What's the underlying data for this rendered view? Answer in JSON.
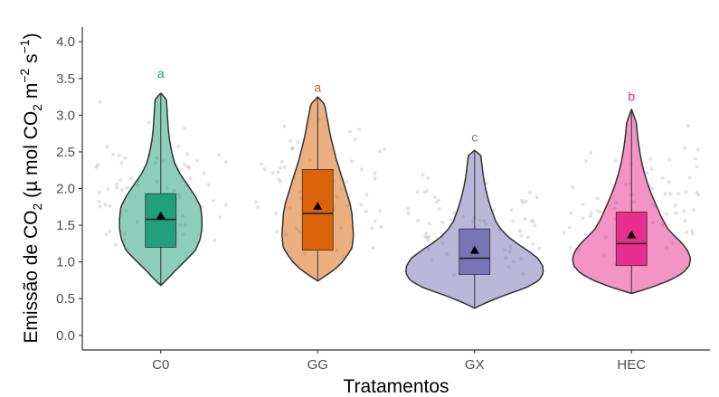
{
  "chart_data": {
    "type": "violin",
    "xlabel": "Tratamentos",
    "ylabel_parts": {
      "t1": "Emissão de CO",
      "s1": "2",
      "t2": " (µ mol CO",
      "s2": "2",
      "t3": " m",
      "s3": "−2",
      "t4": " s",
      "s4": "−1",
      "t5": ")"
    },
    "ylim": [
      -0.2,
      4.2
    ],
    "yticks": [
      "0.0",
      "0.5",
      "1.0",
      "1.5",
      "2.0",
      "2.5",
      "3.0",
      "3.5",
      "4.0"
    ],
    "categories": [
      "C0",
      "GG",
      "GX",
      "HEC"
    ],
    "groups": [
      {
        "category": "C0",
        "fill": "#1b9e77",
        "letter": "a",
        "min": 0.68,
        "q1": 1.2,
        "median": 1.58,
        "q3": 1.93,
        "max": 3.3,
        "mean": 1.63,
        "letter_y": 3.57,
        "density": [
          [
            0.68,
            0.0
          ],
          [
            0.75,
            0.08
          ],
          [
            0.85,
            0.18
          ],
          [
            1.0,
            0.34
          ],
          [
            1.15,
            0.5
          ],
          [
            1.3,
            0.57
          ],
          [
            1.45,
            0.6
          ],
          [
            1.6,
            0.6
          ],
          [
            1.75,
            0.58
          ],
          [
            1.9,
            0.5
          ],
          [
            2.05,
            0.39
          ],
          [
            2.2,
            0.28
          ],
          [
            2.35,
            0.2
          ],
          [
            2.5,
            0.16
          ],
          [
            2.65,
            0.13
          ],
          [
            2.8,
            0.11
          ],
          [
            2.95,
            0.1
          ],
          [
            3.1,
            0.09
          ],
          [
            3.22,
            0.08
          ],
          [
            3.3,
            0.0
          ]
        ]
      },
      {
        "category": "GG",
        "fill": "#d95f02",
        "letter": "a",
        "min": 0.74,
        "q1": 1.16,
        "median": 1.66,
        "q3": 2.26,
        "max": 3.25,
        "mean": 1.76,
        "letter_y": 3.38,
        "density": [
          [
            0.74,
            0.0
          ],
          [
            0.8,
            0.1
          ],
          [
            0.9,
            0.25
          ],
          [
            1.0,
            0.36
          ],
          [
            1.1,
            0.44
          ],
          [
            1.2,
            0.5
          ],
          [
            1.35,
            0.52
          ],
          [
            1.5,
            0.51
          ],
          [
            1.65,
            0.5
          ],
          [
            1.8,
            0.47
          ],
          [
            1.95,
            0.42
          ],
          [
            2.1,
            0.37
          ],
          [
            2.25,
            0.32
          ],
          [
            2.4,
            0.27
          ],
          [
            2.55,
            0.23
          ],
          [
            2.7,
            0.19
          ],
          [
            2.85,
            0.16
          ],
          [
            3.0,
            0.13
          ],
          [
            3.15,
            0.1
          ],
          [
            3.25,
            0.0
          ]
        ]
      },
      {
        "category": "GX",
        "fill": "#7570b3",
        "letter": "c",
        "min": 0.37,
        "q1": 0.83,
        "median": 1.05,
        "q3": 1.45,
        "max": 2.52,
        "mean": 1.16,
        "letter_y": 2.7,
        "density": [
          [
            0.37,
            0.0
          ],
          [
            0.45,
            0.18
          ],
          [
            0.55,
            0.45
          ],
          [
            0.65,
            0.75
          ],
          [
            0.75,
            0.94
          ],
          [
            0.85,
            1.0
          ],
          [
            0.95,
            0.99
          ],
          [
            1.05,
            0.92
          ],
          [
            1.15,
            0.78
          ],
          [
            1.25,
            0.62
          ],
          [
            1.35,
            0.48
          ],
          [
            1.45,
            0.38
          ],
          [
            1.55,
            0.31
          ],
          [
            1.7,
            0.25
          ],
          [
            1.85,
            0.2
          ],
          [
            2.0,
            0.16
          ],
          [
            2.15,
            0.13
          ],
          [
            2.3,
            0.11
          ],
          [
            2.45,
            0.09
          ],
          [
            2.52,
            0.0
          ]
        ]
      },
      {
        "category": "HEC",
        "fill": "#e7298a",
        "letter": "b",
        "min": 0.57,
        "q1": 0.95,
        "median": 1.25,
        "q3": 1.68,
        "max": 3.08,
        "mean": 1.37,
        "letter_y": 3.26,
        "density": [
          [
            0.57,
            0.0
          ],
          [
            0.65,
            0.28
          ],
          [
            0.75,
            0.56
          ],
          [
            0.85,
            0.75
          ],
          [
            0.95,
            0.84
          ],
          [
            1.05,
            0.86
          ],
          [
            1.15,
            0.82
          ],
          [
            1.25,
            0.74
          ],
          [
            1.35,
            0.63
          ],
          [
            1.45,
            0.53
          ],
          [
            1.6,
            0.44
          ],
          [
            1.75,
            0.37
          ],
          [
            1.9,
            0.3
          ],
          [
            2.05,
            0.24
          ],
          [
            2.2,
            0.19
          ],
          [
            2.35,
            0.15
          ],
          [
            2.5,
            0.12
          ],
          [
            2.7,
            0.09
          ],
          [
            2.9,
            0.07
          ],
          [
            3.08,
            0.0
          ]
        ]
      }
    ],
    "grid": false,
    "legend": "none",
    "jitter_points": "individual observations shown as faint grey dots"
  }
}
